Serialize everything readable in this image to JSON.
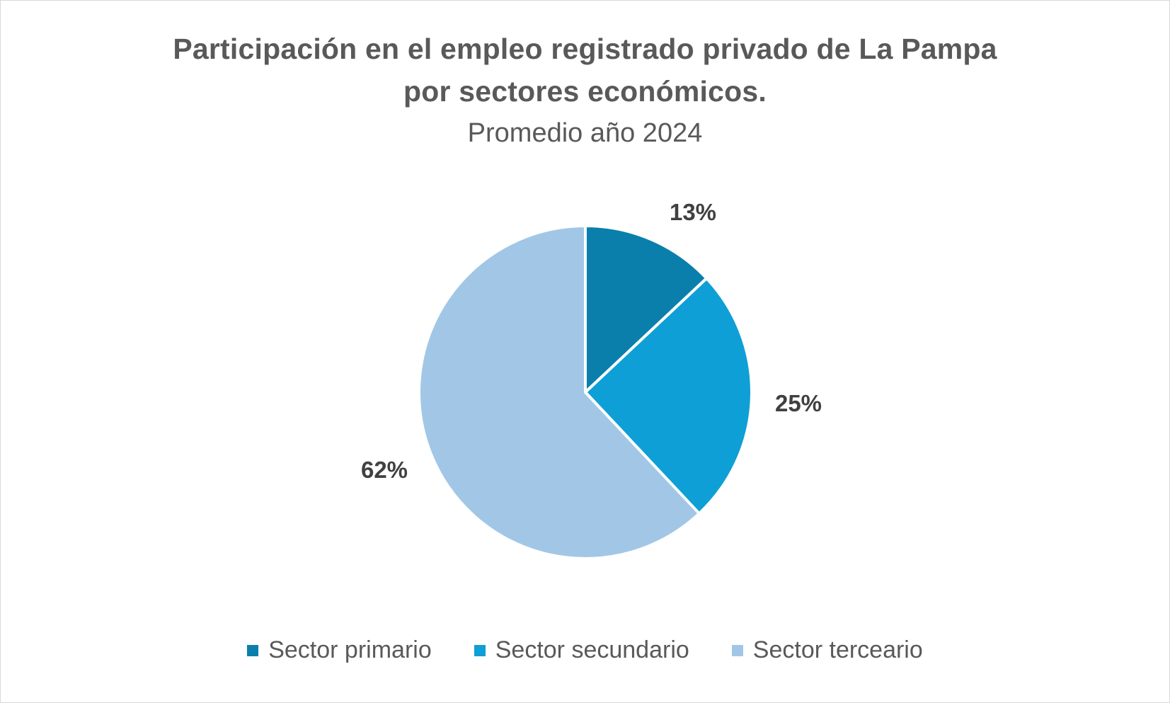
{
  "chart_data": {
    "type": "pie",
    "title_lines": [
      "Participación en el empleo registrado privado de La Pampa",
      "por sectores económicos."
    ],
    "subtitle": "Promedio año 2024",
    "categories": [
      "Sector primario",
      "Sector secundario",
      "Sector terceario"
    ],
    "values": [
      13,
      25,
      62
    ],
    "data_labels": [
      "13%",
      "25%",
      "62%"
    ],
    "colors": [
      "#0b7fab",
      "#0e9fd6",
      "#a2c7e6"
    ],
    "legend_position": "bottom",
    "start_angle": "12 o'clock",
    "direction": "clockwise"
  }
}
